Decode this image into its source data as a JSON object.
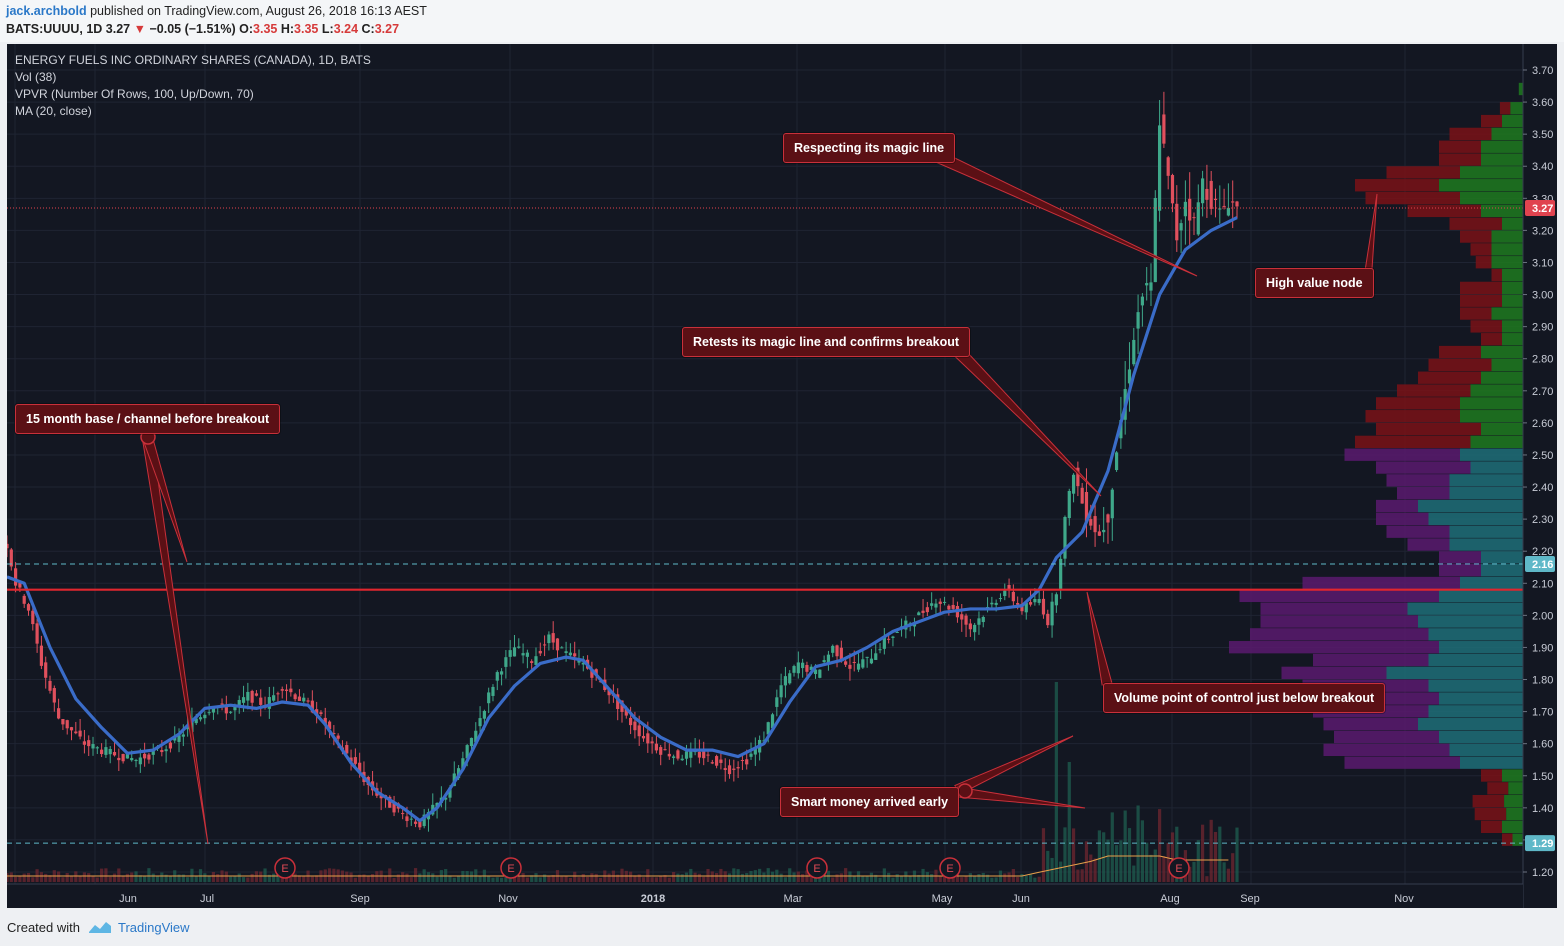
{
  "header": {
    "username": "jack.archbold",
    "published_text": "published on TradingView.com, August 26, 2018 16:13 AEST",
    "symbol": "BATS:UUUU, 1D",
    "last": "3.27",
    "change": "−0.05 (−1.51%)",
    "o_label": "O:",
    "o_value": "3.35",
    "h_label": "H:",
    "h_value": "3.35",
    "l_label": "L:",
    "l_value": "3.24",
    "c_label": "C:",
    "c_value": "3.27"
  },
  "legend": {
    "title": "ENERGY FUELS INC ORDINARY SHARES (CANADA), 1D, BATS",
    "vol": "Vol (38)",
    "vpvr": "VPVR (Number Of Rows, 100, Up/Down, 70)",
    "ma": "MA (20, close)"
  },
  "annotations": {
    "base": "15 month base / channel before breakout",
    "magic": "Respecting its magic line",
    "retest": "Retests its magic line and confirms breakout",
    "hvn": "High value node",
    "poc": "Volume point of control just below breakout",
    "smart": "Smart money arrived early"
  },
  "footer": {
    "created": "Created with",
    "brand": "TradingView"
  },
  "chart_data": {
    "type": "candlestick",
    "symbol": "BATS:UUUU",
    "y_ticks": [
      "3.70",
      "3.60",
      "3.50",
      "3.40",
      "3.30",
      "3.20",
      "3.10",
      "3.00",
      "2.90",
      "2.80",
      "2.70",
      "2.60",
      "2.50",
      "2.40",
      "2.30",
      "2.20",
      "2.10",
      "2.00",
      "1.90",
      "1.80",
      "1.70",
      "1.60",
      "1.50",
      "1.40",
      "1.30",
      "1.20"
    ],
    "x_ticks": [
      "Jun",
      "Jul",
      "Sep",
      "Nov",
      "2018",
      "Mar",
      "May",
      "Jun",
      "Aug",
      "Sep",
      "Nov"
    ],
    "ylim": [
      1.2,
      3.7
    ],
    "price_labels": [
      {
        "value": 3.27,
        "text": "3.27",
        "color": "#e0434f"
      },
      {
        "value": 2.16,
        "text": "2.16",
        "color": "#5fb8c8"
      },
      {
        "value": 1.29,
        "text": "1.29",
        "color": "#5fb8c8"
      }
    ],
    "lines": [
      {
        "name": "breakout",
        "value": 2.08,
        "color": "#e0262e"
      },
      {
        "name": "channel-top",
        "value": 2.16,
        "color": "#5fb8c8"
      },
      {
        "name": "channel-bottom",
        "value": 1.29,
        "color": "#5fb8c8"
      },
      {
        "name": "last-price",
        "value": 3.27,
        "color": "#e0434f"
      }
    ],
    "earnings_marker": "E",
    "close_path": [
      [
        0,
        2.22
      ],
      [
        2,
        2.1
      ],
      [
        5,
        2.02
      ],
      [
        8,
        1.85
      ],
      [
        12,
        1.68
      ],
      [
        18,
        1.6
      ],
      [
        24,
        1.57
      ],
      [
        30,
        1.55
      ],
      [
        36,
        1.58
      ],
      [
        40,
        1.62
      ],
      [
        44,
        1.68
      ],
      [
        48,
        1.72
      ],
      [
        52,
        1.7
      ],
      [
        56,
        1.75
      ],
      [
        60,
        1.72
      ],
      [
        64,
        1.78
      ],
      [
        68,
        1.74
      ],
      [
        72,
        1.7
      ],
      [
        76,
        1.62
      ],
      [
        80,
        1.55
      ],
      [
        84,
        1.47
      ],
      [
        88,
        1.42
      ],
      [
        92,
        1.38
      ],
      [
        96,
        1.35
      ],
      [
        98,
        1.38
      ],
      [
        102,
        1.44
      ],
      [
        106,
        1.55
      ],
      [
        110,
        1.68
      ],
      [
        114,
        1.82
      ],
      [
        118,
        1.9
      ],
      [
        122,
        1.86
      ],
      [
        126,
        1.93
      ],
      [
        130,
        1.88
      ],
      [
        134,
        1.85
      ],
      [
        136,
        1.82
      ],
      [
        140,
        1.76
      ],
      [
        144,
        1.68
      ],
      [
        148,
        1.62
      ],
      [
        152,
        1.58
      ],
      [
        156,
        1.56
      ],
      [
        160,
        1.57
      ],
      [
        164,
        1.55
      ],
      [
        168,
        1.52
      ],
      [
        172,
        1.55
      ],
      [
        176,
        1.62
      ],
      [
        180,
        1.78
      ],
      [
        184,
        1.85
      ],
      [
        188,
        1.82
      ],
      [
        192,
        1.9
      ],
      [
        196,
        1.84
      ],
      [
        200,
        1.86
      ],
      [
        204,
        1.92
      ],
      [
        208,
        1.96
      ],
      [
        212,
        2.0
      ],
      [
        216,
        2.05
      ],
      [
        220,
        2.02
      ],
      [
        224,
        1.96
      ],
      [
        228,
        2.02
      ],
      [
        232,
        2.08
      ],
      [
        236,
        2.02
      ],
      [
        240,
        2.05
      ],
      [
        242,
        1.98
      ],
      [
        244,
        2.08
      ],
      [
        246,
        2.3
      ],
      [
        248,
        2.45
      ],
      [
        250,
        2.35
      ],
      [
        252,
        2.3
      ],
      [
        254,
        2.25
      ],
      [
        256,
        2.32
      ],
      [
        258,
        2.52
      ],
      [
        260,
        2.7
      ],
      [
        262,
        2.88
      ],
      [
        264,
        3.0
      ],
      [
        266,
        3.02
      ],
      [
        268,
        3.55
      ],
      [
        270,
        3.35
      ],
      [
        272,
        3.18
      ],
      [
        274,
        3.3
      ],
      [
        276,
        3.22
      ],
      [
        278,
        3.35
      ],
      [
        280,
        3.3
      ],
      [
        282,
        3.25
      ],
      [
        284,
        3.3
      ],
      [
        286,
        3.27
      ]
    ],
    "ma20_path": [
      [
        0,
        2.12
      ],
      [
        4,
        2.1
      ],
      [
        10,
        1.9
      ],
      [
        16,
        1.74
      ],
      [
        22,
        1.65
      ],
      [
        28,
        1.57
      ],
      [
        34,
        1.58
      ],
      [
        40,
        1.63
      ],
      [
        46,
        1.71
      ],
      [
        52,
        1.72
      ],
      [
        58,
        1.71
      ],
      [
        64,
        1.73
      ],
      [
        70,
        1.72
      ],
      [
        74,
        1.66
      ],
      [
        80,
        1.54
      ],
      [
        86,
        1.45
      ],
      [
        92,
        1.4
      ],
      [
        96,
        1.36
      ],
      [
        100,
        1.4
      ],
      [
        106,
        1.52
      ],
      [
        112,
        1.68
      ],
      [
        118,
        1.78
      ],
      [
        124,
        1.85
      ],
      [
        130,
        1.87
      ],
      [
        134,
        1.86
      ],
      [
        140,
        1.77
      ],
      [
        146,
        1.68
      ],
      [
        152,
        1.62
      ],
      [
        158,
        1.58
      ],
      [
        164,
        1.58
      ],
      [
        170,
        1.56
      ],
      [
        176,
        1.6
      ],
      [
        182,
        1.73
      ],
      [
        188,
        1.84
      ],
      [
        194,
        1.86
      ],
      [
        200,
        1.9
      ],
      [
        206,
        1.95
      ],
      [
        212,
        1.98
      ],
      [
        218,
        2.01
      ],
      [
        224,
        2.02
      ],
      [
        230,
        2.02
      ],
      [
        236,
        2.03
      ],
      [
        240,
        2.08
      ],
      [
        244,
        2.18
      ],
      [
        250,
        2.26
      ],
      [
        256,
        2.45
      ],
      [
        262,
        2.75
      ],
      [
        268,
        3.0
      ],
      [
        274,
        3.14
      ],
      [
        280,
        3.2
      ],
      [
        286,
        3.24
      ]
    ],
    "vpvr_bands": [
      [
        3.64,
        4,
        0
      ],
      [
        3.58,
        12,
        10
      ],
      [
        3.54,
        20,
        20
      ],
      [
        3.5,
        30,
        40
      ],
      [
        3.46,
        40,
        40
      ],
      [
        3.42,
        40,
        40
      ],
      [
        3.38,
        60,
        70
      ],
      [
        3.34,
        80,
        80
      ],
      [
        3.3,
        60,
        90
      ],
      [
        3.26,
        40,
        70
      ],
      [
        3.22,
        20,
        50
      ],
      [
        3.18,
        30,
        30
      ],
      [
        3.14,
        30,
        20
      ],
      [
        3.1,
        30,
        15
      ],
      [
        3.06,
        20,
        10
      ],
      [
        3.02,
        20,
        40
      ],
      [
        2.98,
        20,
        40
      ],
      [
        2.94,
        30,
        30
      ],
      [
        2.9,
        20,
        30
      ],
      [
        2.86,
        20,
        20
      ],
      [
        2.82,
        40,
        40
      ],
      [
        2.78,
        30,
        60
      ],
      [
        2.74,
        40,
        60
      ],
      [
        2.7,
        50,
        70
      ],
      [
        2.66,
        60,
        80
      ],
      [
        2.62,
        60,
        90
      ],
      [
        2.58,
        40,
        100
      ],
      [
        2.54,
        50,
        110
      ],
      [
        2.5,
        60,
        110
      ],
      [
        2.46,
        50,
        90
      ],
      [
        2.42,
        70,
        60
      ],
      [
        2.38,
        70,
        50
      ],
      [
        2.34,
        100,
        40
      ],
      [
        2.3,
        90,
        50
      ],
      [
        2.26,
        70,
        60
      ],
      [
        2.22,
        70,
        40
      ],
      [
        2.18,
        40,
        40
      ],
      [
        2.14,
        40,
        40
      ],
      [
        2.1,
        60,
        150
      ],
      [
        2.06,
        80,
        190
      ],
      [
        2.02,
        110,
        140
      ],
      [
        1.98,
        100,
        150
      ],
      [
        1.94,
        90,
        170
      ],
      [
        1.9,
        80,
        200
      ],
      [
        1.86,
        90,
        110
      ],
      [
        1.82,
        130,
        100
      ],
      [
        1.78,
        90,
        120
      ],
      [
        1.74,
        80,
        120
      ],
      [
        1.7,
        90,
        110
      ],
      [
        1.66,
        100,
        90
      ],
      [
        1.62,
        80,
        100
      ],
      [
        1.58,
        70,
        120
      ],
      [
        1.54,
        60,
        110
      ],
      [
        1.5,
        20,
        20
      ],
      [
        1.46,
        14,
        20
      ],
      [
        1.42,
        18,
        30
      ],
      [
        1.38,
        16,
        30
      ],
      [
        1.34,
        20,
        20
      ],
      [
        1.3,
        10,
        10
      ]
    ]
  }
}
